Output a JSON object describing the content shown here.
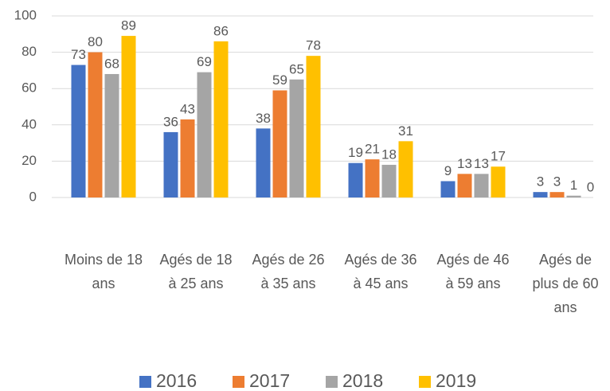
{
  "chart_data": {
    "type": "bar",
    "categories": [
      "Moins de 18 ans",
      "Agés de 18 à 25 ans",
      "Agés de 26 à 35 ans",
      "Agés de 36 à 45 ans",
      "Agés de 46 à 59 ans",
      "Agés de plus de 60 ans"
    ],
    "series": [
      {
        "name": "2016",
        "color": "#4472c4",
        "values": [
          73,
          36,
          38,
          19,
          9,
          3
        ]
      },
      {
        "name": "2017",
        "color": "#ed7d31",
        "values": [
          80,
          43,
          59,
          21,
          13,
          3
        ]
      },
      {
        "name": "2018",
        "color": "#a5a5a5",
        "values": [
          68,
          69,
          65,
          18,
          13,
          1
        ]
      },
      {
        "name": "2019",
        "color": "#ffc000",
        "values": [
          89,
          86,
          78,
          31,
          17,
          0
        ]
      }
    ],
    "ylim": [
      0,
      100
    ],
    "yticks": [
      0,
      20,
      40,
      60,
      80,
      100
    ],
    "grid": true,
    "legend": "bottom"
  }
}
